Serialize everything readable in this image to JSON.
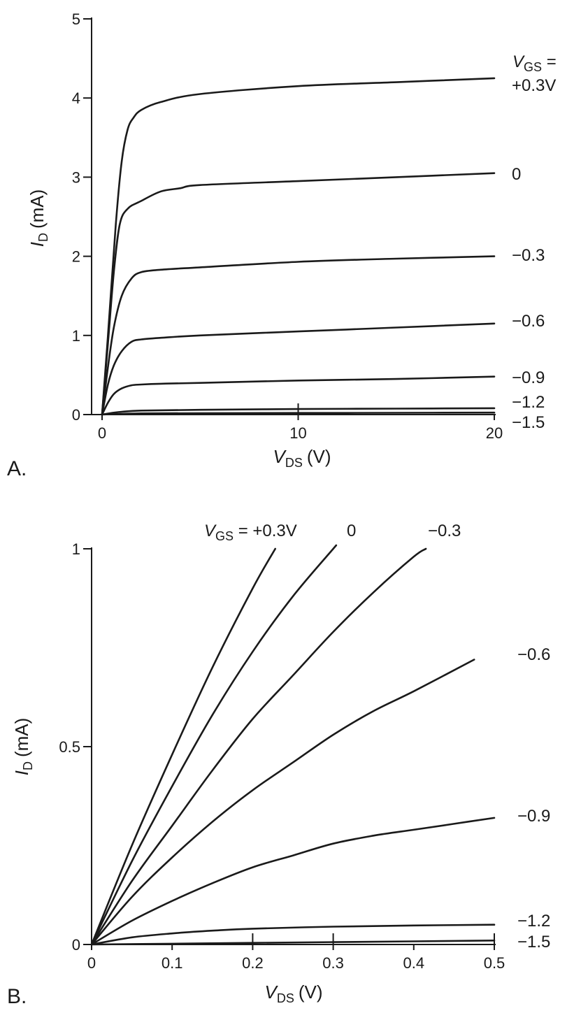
{
  "chart_data": [
    {
      "panel": "A.",
      "type": "line",
      "xlabel": {
        "sym": "V",
        "sub": "DS",
        "unit": "(V)"
      },
      "ylabel": {
        "sym": "I",
        "sub": "D",
        "unit": "(mA)"
      },
      "xlim": [
        0,
        20
      ],
      "ylim": [
        0,
        5
      ],
      "xticks": [
        0,
        10,
        20
      ],
      "xtick_labels": [
        "0",
        "10",
        "20"
      ],
      "yticks": [
        0,
        1,
        2,
        3,
        4,
        5
      ],
      "ytick_labels": [
        "0",
        "1",
        "2",
        "3",
        "4",
        "5"
      ],
      "legend_title": {
        "sym": "V",
        "sub": "GS",
        "suffix": " ="
      },
      "series": [
        {
          "name": "+0.3V",
          "x": [
            0,
            0.3,
            0.7,
            1.0,
            1.3,
            1.6,
            2,
            3,
            5,
            10,
            15,
            20
          ],
          "y": [
            0,
            1.0,
            2.4,
            3.2,
            3.6,
            3.75,
            3.85,
            3.95,
            4.05,
            4.15,
            4.2,
            4.25
          ]
        },
        {
          "name": "0",
          "x": [
            0,
            0.3,
            0.6,
            0.9,
            1.3,
            2,
            3,
            4,
            5,
            10,
            15,
            20
          ],
          "y": [
            0,
            0.9,
            1.8,
            2.4,
            2.6,
            2.7,
            2.82,
            2.86,
            2.9,
            2.95,
            3.0,
            3.05
          ]
        },
        {
          "name": "−0.3",
          "x": [
            0,
            0.3,
            0.6,
            1.0,
            1.5,
            2,
            3,
            5,
            10,
            15,
            20
          ],
          "y": [
            0,
            0.6,
            1.1,
            1.5,
            1.72,
            1.8,
            1.83,
            1.86,
            1.93,
            1.97,
            2.0
          ]
        },
        {
          "name": "−0.6",
          "x": [
            0,
            0.3,
            0.6,
            1.0,
            1.5,
            2,
            3,
            5,
            10,
            15,
            20
          ],
          "y": [
            0,
            0.38,
            0.62,
            0.8,
            0.92,
            0.95,
            0.97,
            1.0,
            1.05,
            1.1,
            1.15
          ]
        },
        {
          "name": "−0.9",
          "x": [
            0,
            0.3,
            0.6,
            1.0,
            1.5,
            2,
            3,
            5,
            10,
            15,
            20
          ],
          "y": [
            0,
            0.15,
            0.26,
            0.33,
            0.37,
            0.38,
            0.39,
            0.4,
            0.43,
            0.45,
            0.48
          ]
        },
        {
          "name": "−1.2",
          "x": [
            0,
            0.5,
            1,
            2,
            5,
            10,
            15,
            20
          ],
          "y": [
            0,
            0.02,
            0.035,
            0.05,
            0.06,
            0.07,
            0.075,
            0.08
          ]
        },
        {
          "name": "−1.5",
          "x": [
            0,
            0.5,
            1,
            2,
            5,
            10,
            15,
            20
          ],
          "y": [
            0,
            0.005,
            0.01,
            0.015,
            0.018,
            0.02,
            0.022,
            0.025
          ]
        }
      ]
    },
    {
      "panel": "B.",
      "type": "line",
      "xlabel": {
        "sym": "V",
        "sub": "DS",
        "unit": "(V)"
      },
      "ylabel": {
        "sym": "I",
        "sub": "D",
        "unit": "(mA)"
      },
      "xlim": [
        0,
        0.5
      ],
      "ylim": [
        0,
        1
      ],
      "xticks": [
        0,
        0.1,
        0.2,
        0.3,
        0.4,
        0.5
      ],
      "xtick_labels": [
        "0",
        "0.1",
        "0.2",
        "0.3",
        "0.4",
        "0.5"
      ],
      "yticks": [
        0,
        0.5,
        1
      ],
      "ytick_labels": [
        "0",
        "0.5",
        "1"
      ],
      "legend_title": {
        "sym": "V",
        "sub": "GS",
        "suffix": " = "
      },
      "series": [
        {
          "name": "+0.3V",
          "x": [
            0,
            0.05,
            0.1,
            0.15,
            0.2,
            0.228
          ],
          "y": [
            0,
            0.25,
            0.48,
            0.7,
            0.9,
            1.0
          ]
        },
        {
          "name": "0",
          "x": [
            0,
            0.05,
            0.1,
            0.15,
            0.2,
            0.25,
            0.3,
            0.3
          ],
          "y": [
            0,
            0.21,
            0.4,
            0.58,
            0.74,
            0.88,
            1.0,
            1.0
          ]
        },
        {
          "name": "−0.3",
          "x": [
            0,
            0.05,
            0.1,
            0.15,
            0.2,
            0.25,
            0.3,
            0.35,
            0.4,
            0.415
          ],
          "y": [
            0,
            0.16,
            0.3,
            0.44,
            0.57,
            0.68,
            0.79,
            0.89,
            0.98,
            1.0
          ]
        },
        {
          "name": "−0.6",
          "x": [
            0,
            0.05,
            0.1,
            0.15,
            0.2,
            0.25,
            0.3,
            0.35,
            0.4,
            0.475
          ],
          "y": [
            0,
            0.12,
            0.22,
            0.31,
            0.39,
            0.46,
            0.53,
            0.59,
            0.64,
            0.72
          ]
        },
        {
          "name": "−0.9",
          "x": [
            0,
            0.05,
            0.1,
            0.15,
            0.2,
            0.25,
            0.3,
            0.35,
            0.4,
            0.45,
            0.5
          ],
          "y": [
            0,
            0.06,
            0.11,
            0.155,
            0.195,
            0.225,
            0.255,
            0.275,
            0.29,
            0.305,
            0.32
          ]
        },
        {
          "name": "−1.2",
          "x": [
            0,
            0.05,
            0.1,
            0.15,
            0.2,
            0.3,
            0.4,
            0.5
          ],
          "y": [
            0,
            0.018,
            0.028,
            0.035,
            0.04,
            0.045,
            0.048,
            0.05
          ]
        },
        {
          "name": "−1.5",
          "x": [
            0,
            0.1,
            0.2,
            0.3,
            0.4,
            0.5
          ],
          "y": [
            0,
            0.002,
            0.004,
            0.006,
            0.008,
            0.01
          ]
        }
      ]
    }
  ]
}
